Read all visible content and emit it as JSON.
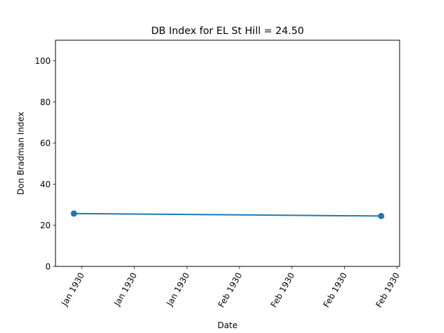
{
  "chart_data": {
    "type": "line",
    "title": "DB Index for EL St Hill = 24.50",
    "xlabel": "Date",
    "ylabel": "Don Bradman Index",
    "ylim": [
      0,
      110
    ],
    "yticks": [
      0,
      20,
      40,
      60,
      80,
      100
    ],
    "xtick_labels": [
      "Jan 1930",
      "Jan 1930",
      "Jan 1930",
      "Feb 1930",
      "Feb 1930",
      "Feb 1930",
      "Feb 1930"
    ],
    "series": [
      {
        "name": "DB Index",
        "color": "#1f77b4",
        "points": [
          {
            "x": -0.15,
            "y": 25.7
          },
          {
            "x": 5.7,
            "y": 24.5
          }
        ]
      }
    ],
    "xlim": [
      -0.5,
      6.05
    ]
  }
}
